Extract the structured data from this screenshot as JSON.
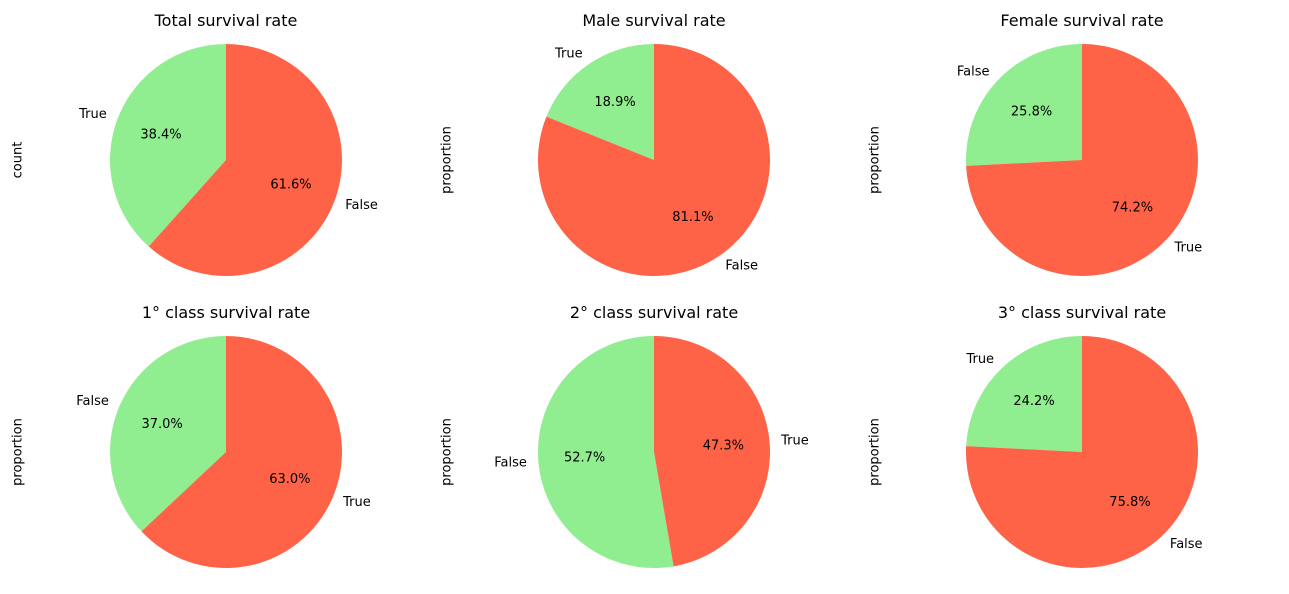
{
  "chart_data": [
    {
      "type": "pie",
      "title": "Total survival rate",
      "ylabel": "count",
      "categories": [
        "True",
        "False"
      ],
      "values": [
        38.4,
        61.6
      ],
      "percent_labels": [
        "38.4%",
        "61.6%"
      ],
      "colors": [
        "#90EE90",
        "#FF6347"
      ]
    },
    {
      "type": "pie",
      "title": "Male survival rate",
      "ylabel": "proportion",
      "categories": [
        "True",
        "False"
      ],
      "values": [
        18.9,
        81.1
      ],
      "percent_labels": [
        "18.9%",
        "81.1%"
      ],
      "colors": [
        "#90EE90",
        "#FF6347"
      ]
    },
    {
      "type": "pie",
      "title": "Female survival rate",
      "ylabel": "proportion",
      "categories": [
        "False",
        "True"
      ],
      "values": [
        25.8,
        74.2
      ],
      "percent_labels": [
        "25.8%",
        "74.2%"
      ],
      "colors": [
        "#90EE90",
        "#FF6347"
      ]
    },
    {
      "type": "pie",
      "title": "1° class survival rate",
      "ylabel": "proportion",
      "categories": [
        "False",
        "True"
      ],
      "values": [
        37.0,
        63.0
      ],
      "percent_labels": [
        "37.0%",
        "63.0%"
      ],
      "colors": [
        "#90EE90",
        "#FF6347"
      ]
    },
    {
      "type": "pie",
      "title": "2° class survival rate",
      "ylabel": "proportion",
      "categories": [
        "False",
        "True"
      ],
      "values": [
        52.7,
        47.3
      ],
      "percent_labels": [
        "52.7%",
        "47.3%"
      ],
      "colors": [
        "#90EE90",
        "#FF6347"
      ]
    },
    {
      "type": "pie",
      "title": "3° class survival rate",
      "ylabel": "proportion",
      "categories": [
        "True",
        "False"
      ],
      "values": [
        24.2,
        75.8
      ],
      "percent_labels": [
        "24.2%",
        "75.8%"
      ],
      "colors": [
        "#90EE90",
        "#FF6347"
      ]
    }
  ]
}
